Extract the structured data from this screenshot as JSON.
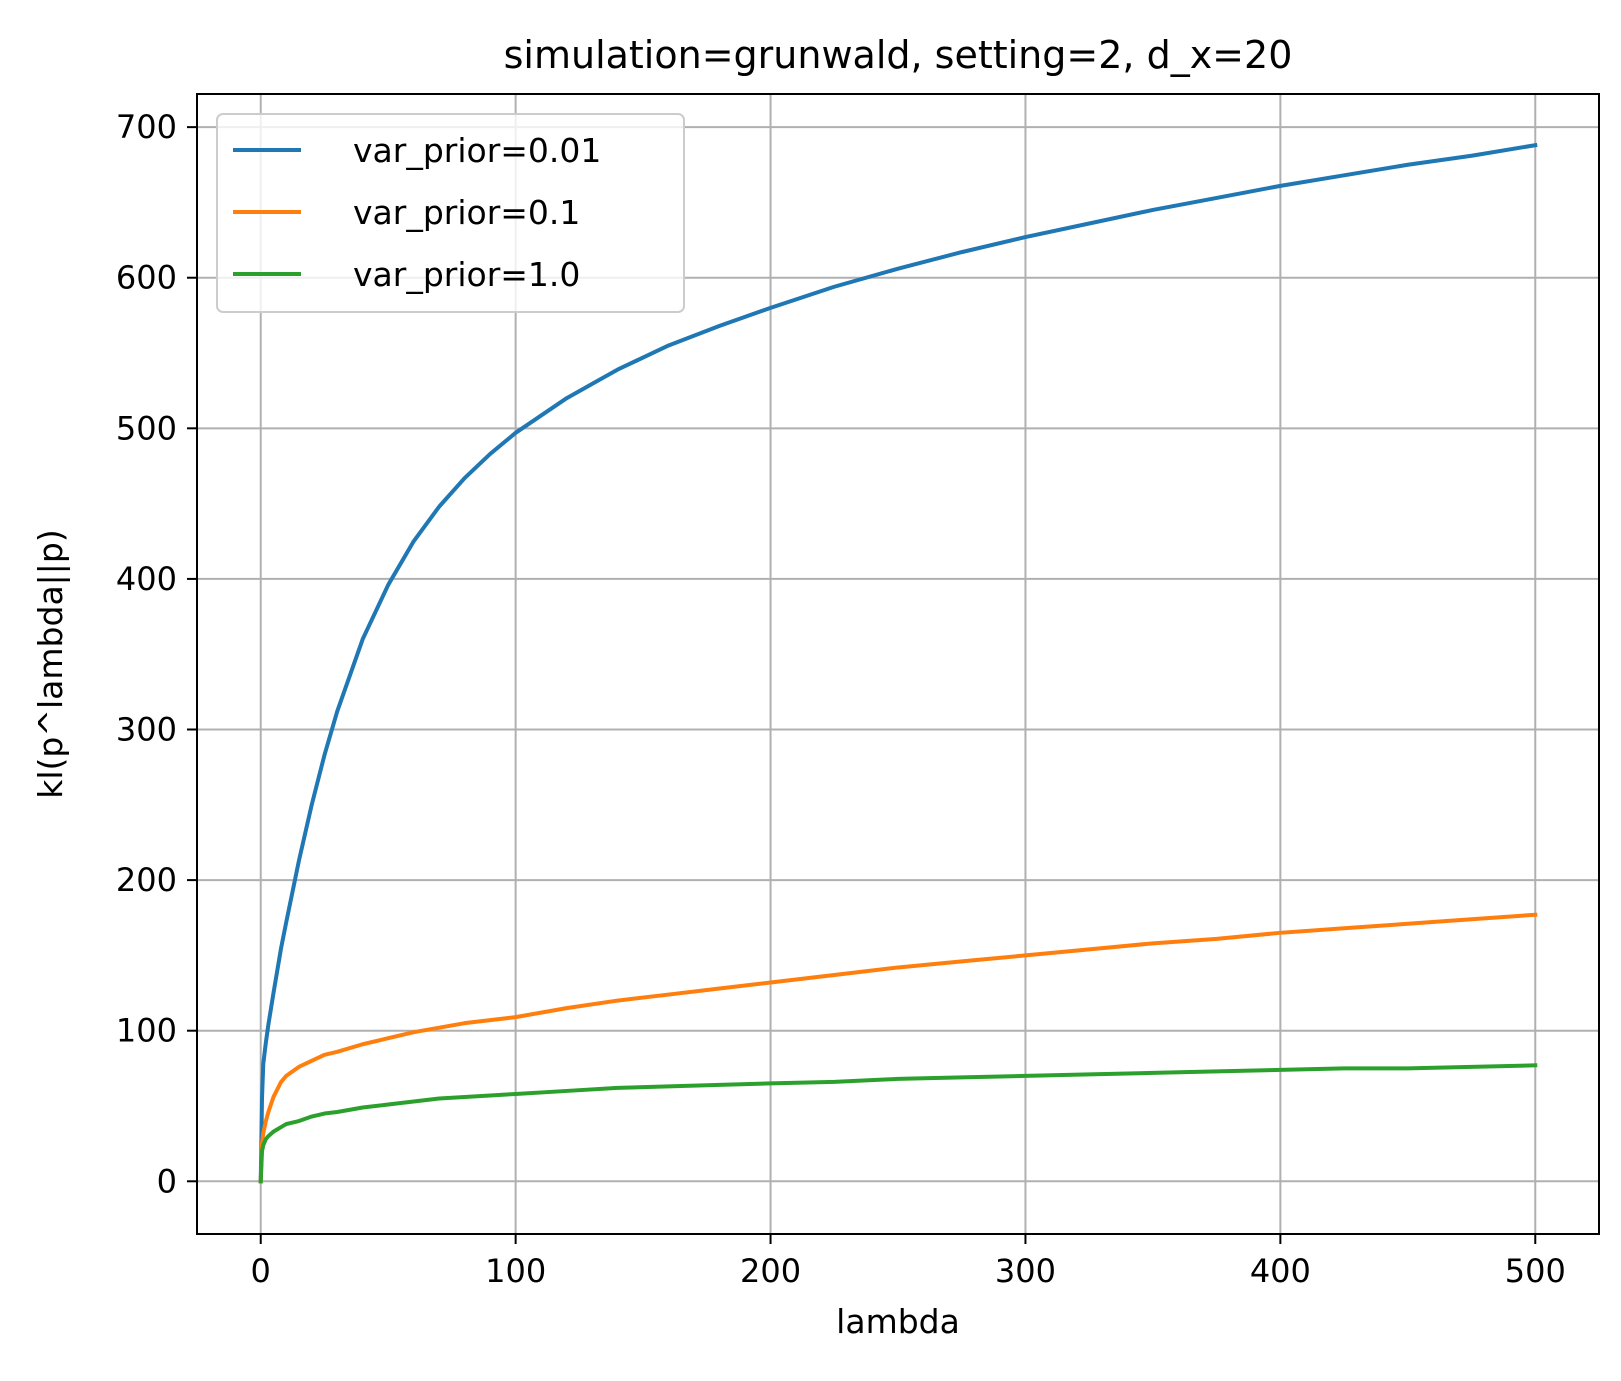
{
  "chart_data": {
    "type": "line",
    "title": "simulation=grunwald, setting=2, d_x=20",
    "xlabel": "lambda",
    "ylabel": "kl(p^lambda||p)",
    "xlim": [
      -25,
      525
    ],
    "ylim": [
      -35,
      722
    ],
    "xticks": [
      0,
      100,
      200,
      300,
      400,
      500
    ],
    "yticks": [
      0,
      100,
      200,
      300,
      400,
      500,
      600,
      700
    ],
    "grid": true,
    "legend_position": "upper-left",
    "series": [
      {
        "name": "var_prior=0.01",
        "color": "#1f77b4",
        "x": [
          0,
          0.5,
          1,
          2,
          3,
          5,
          8,
          10,
          15,
          20,
          25,
          30,
          40,
          50,
          60,
          70,
          80,
          90,
          100,
          120,
          140,
          160,
          180,
          200,
          225,
          250,
          275,
          300,
          325,
          350,
          375,
          400,
          425,
          450,
          475,
          500
        ],
        "y": [
          0,
          55,
          78,
          92,
          104,
          125,
          155,
          172,
          213,
          250,
          283,
          312,
          360,
          396,
          425,
          448,
          467,
          483,
          497,
          520,
          539,
          555,
          568,
          580,
          594,
          606,
          617,
          627,
          636,
          645,
          653,
          661,
          668,
          675,
          681,
          688
        ]
      },
      {
        "name": "var_prior=0.1",
        "color": "#ff7f0e",
        "x": [
          0,
          0.5,
          1,
          2,
          3,
          5,
          8,
          10,
          15,
          20,
          25,
          30,
          40,
          50,
          60,
          70,
          80,
          90,
          100,
          120,
          140,
          160,
          180,
          200,
          225,
          250,
          275,
          300,
          325,
          350,
          375,
          400,
          425,
          450,
          475,
          500
        ],
        "y": [
          0,
          25,
          32,
          40,
          46,
          56,
          66,
          70,
          76,
          80,
          84,
          86,
          91,
          95,
          99,
          102,
          105,
          107,
          109,
          115,
          120,
          124,
          128,
          132,
          137,
          142,
          146,
          150,
          154,
          158,
          161,
          165,
          168,
          171,
          174,
          177
        ]
      },
      {
        "name": "var_prior=1.0",
        "color": "#2ca02c",
        "x": [
          0,
          0.5,
          1,
          2,
          3,
          5,
          8,
          10,
          15,
          20,
          25,
          30,
          40,
          50,
          60,
          70,
          80,
          90,
          100,
          120,
          140,
          160,
          180,
          200,
          225,
          250,
          275,
          300,
          325,
          350,
          375,
          400,
          425,
          450,
          475,
          500
        ],
        "y": [
          0,
          20,
          24,
          28,
          30,
          33,
          36,
          38,
          40,
          43,
          45,
          46,
          49,
          51,
          53,
          55,
          56,
          57,
          58,
          60,
          62,
          63,
          64,
          65,
          66,
          68,
          69,
          70,
          71,
          72,
          73,
          74,
          75,
          75,
          76,
          77
        ]
      }
    ]
  }
}
